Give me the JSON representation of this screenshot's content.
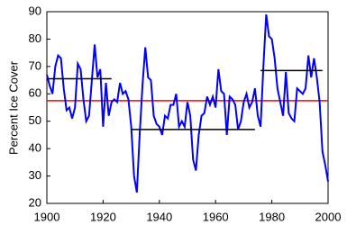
{
  "chart_data": {
    "type": "line",
    "y_label": "Percent Ice Cover",
    "x": [
      1900,
      1901,
      1902,
      1903,
      1904,
      1905,
      1906,
      1907,
      1908,
      1909,
      1910,
      1911,
      1912,
      1913,
      1914,
      1915,
      1916,
      1917,
      1918,
      1919,
      1920,
      1921,
      1922,
      1923,
      1924,
      1925,
      1926,
      1927,
      1928,
      1929,
      1930,
      1931,
      1932,
      1933,
      1934,
      1935,
      1936,
      1937,
      1938,
      1939,
      1940,
      1941,
      1942,
      1943,
      1944,
      1945,
      1946,
      1947,
      1948,
      1949,
      1950,
      1951,
      1952,
      1953,
      1954,
      1955,
      1956,
      1957,
      1958,
      1959,
      1960,
      1961,
      1962,
      1963,
      1964,
      1965,
      1966,
      1967,
      1968,
      1969,
      1970,
      1971,
      1972,
      1973,
      1974,
      1975,
      1976,
      1977,
      1978,
      1979,
      1980,
      1981,
      1982,
      1983,
      1984,
      1985,
      1986,
      1987,
      1988,
      1989,
      1990,
      1991,
      1992,
      1993,
      1994,
      1995,
      1996,
      1997,
      1998,
      1999,
      2000
    ],
    "series": [
      {
        "color": "#0000ff",
        "values": [
          67,
          63,
          60,
          70,
          74,
          73,
          62,
          54,
          55,
          51,
          55,
          71,
          69,
          58,
          50,
          52,
          65,
          78,
          66,
          69,
          48,
          64,
          52,
          57,
          58,
          57,
          64,
          60,
          61,
          58,
          48,
          30,
          24,
          45,
          63,
          77,
          66,
          65,
          52,
          49,
          48,
          45,
          52,
          51,
          56,
          56,
          60,
          48,
          50,
          48,
          57,
          52,
          36,
          32,
          45,
          52,
          53,
          59,
          56,
          59,
          55,
          69,
          61,
          60,
          45,
          59,
          58,
          56,
          47,
          50,
          57,
          60,
          55,
          57,
          62,
          52,
          48,
          70,
          89,
          81,
          80,
          73,
          62,
          57,
          52,
          68,
          53,
          51,
          50,
          62,
          61,
          60,
          62,
          74,
          66,
          73,
          66,
          57,
          39,
          34,
          28
        ]
      }
    ],
    "reference_lines": [
      {
        "value": 57.5,
        "color": "#ff0000"
      }
    ],
    "period_means": [
      {
        "x": [
          1900,
          1923
        ],
        "value": 65.5,
        "color": "#000000"
      },
      {
        "x": [
          1930,
          1974
        ],
        "value": 47,
        "color": "#000000"
      },
      {
        "x": [
          1976,
          1998
        ],
        "value": 68.5,
        "color": "#000000"
      }
    ],
    "xlim": [
      1900,
      2000
    ],
    "xticks": [
      1900,
      1920,
      1940,
      1960,
      1980,
      2000
    ],
    "ylim": [
      20,
      90
    ],
    "yticks": [
      20,
      30,
      40,
      50,
      60,
      70,
      80,
      90
    ]
  }
}
